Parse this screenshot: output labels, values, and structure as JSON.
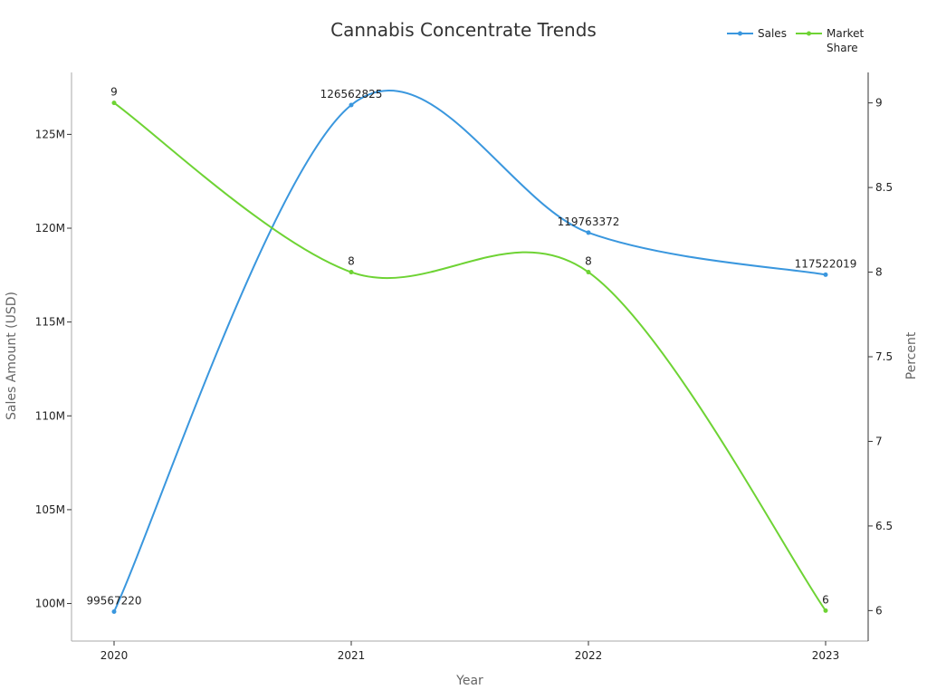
{
  "chart_data": {
    "type": "line",
    "title": "Cannabis Concentrate Trends",
    "xlabel": "Year",
    "ylabel": "Sales Amount (USD)",
    "y2label": "Percent",
    "categories": [
      "2020",
      "2021",
      "2022",
      "2023"
    ],
    "ylim": [
      98000000,
      128300000
    ],
    "y2lim": [
      5.82,
      9.18
    ],
    "y_ticks": [
      100000000,
      105000000,
      110000000,
      115000000,
      120000000,
      125000000
    ],
    "y_tick_labels": [
      "100M",
      "105M",
      "110M",
      "115M",
      "120M",
      "125M"
    ],
    "y2_ticks": [
      6,
      6.5,
      7,
      7.5,
      8,
      8.5,
      9
    ],
    "y2_tick_labels": [
      "6",
      "6.5",
      "7",
      "7.5",
      "8",
      "8.5",
      "9"
    ],
    "grid": false,
    "legend_position": "top-right",
    "series": [
      {
        "name": "Sales",
        "axis": "left",
        "color": "#3a97de",
        "values": [
          99567220,
          126562825,
          119763372,
          117522019
        ],
        "labels": [
          "99567220",
          "126562825",
          "119763372",
          "117522019"
        ]
      },
      {
        "name": "Market Share",
        "axis": "right",
        "color": "#6ed334",
        "values": [
          9,
          8,
          8,
          6
        ],
        "labels": [
          "9",
          "8",
          "8",
          "6"
        ]
      }
    ]
  }
}
